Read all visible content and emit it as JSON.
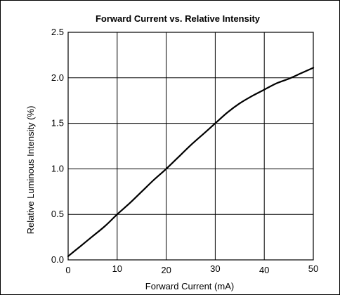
{
  "chart_data": {
    "type": "line",
    "title": "Forward Current vs. Relative Intensity",
    "xlabel": "Forward Current (mA)",
    "ylabel": "Relative Luminous Intensity (%)",
    "xlim": [
      0,
      50
    ],
    "ylim": [
      0,
      2.5
    ],
    "x_ticks": [
      "0",
      "10",
      "20",
      "30",
      "40",
      "50"
    ],
    "y_ticks": [
      "0.0",
      "0.5",
      "1.0",
      "1.5",
      "2.0",
      "2.5"
    ],
    "grid": true,
    "series": [
      {
        "x": [
          0,
          2.5,
          5,
          7.5,
          10,
          12.5,
          15,
          17.5,
          20,
          22.5,
          25,
          27.5,
          30,
          32.5,
          35,
          37.5,
          40,
          42.5,
          45,
          47.5,
          50
        ],
        "y": [
          0.04,
          0.15,
          0.26,
          0.37,
          0.5,
          0.62,
          0.75,
          0.88,
          1.0,
          1.13,
          1.26,
          1.38,
          1.5,
          1.62,
          1.72,
          1.8,
          1.87,
          1.94,
          1.99,
          2.05,
          2.11
        ]
      }
    ]
  }
}
